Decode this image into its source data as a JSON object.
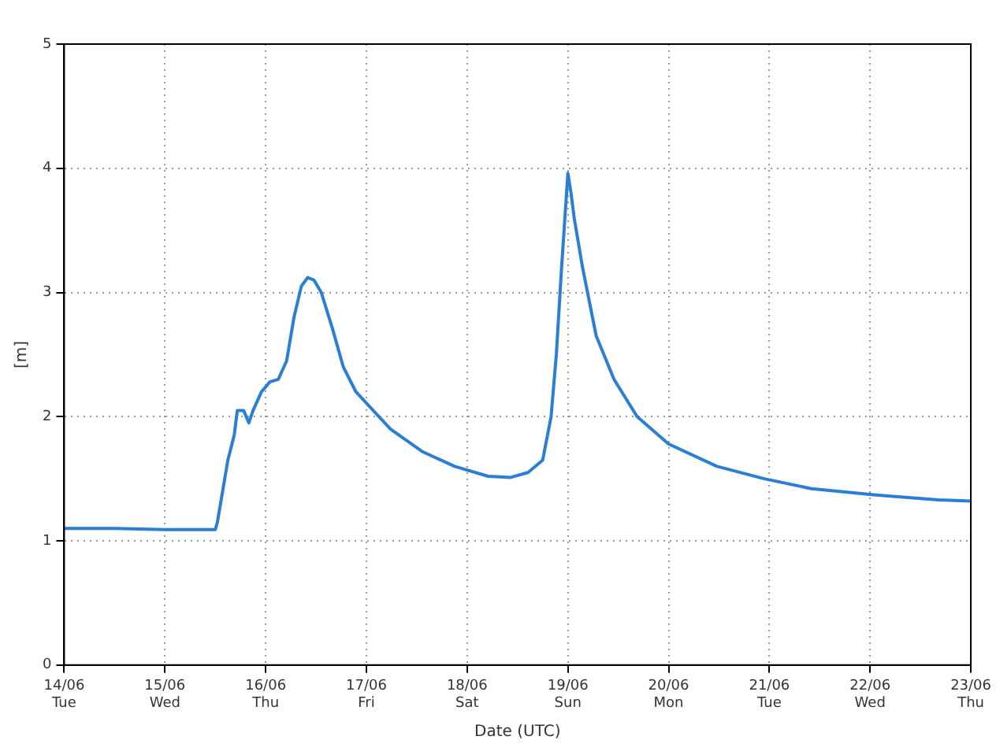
{
  "chart_data": {
    "type": "line",
    "xlabel": "Date (UTC)",
    "ylabel": "[m]",
    "grid": true,
    "legend": false,
    "marker": "none",
    "line_style": "solid",
    "xlim": [
      "--06-14",
      "--06-23"
    ],
    "xticks": [
      {
        "value": "--06-14",
        "label": "14/06 Tue"
      },
      {
        "value": "--06-15",
        "label": "15/06 Wed"
      },
      {
        "value": "--06-16",
        "label": "16/06 Thu"
      },
      {
        "value": "--06-17",
        "label": "17/06 Fri"
      },
      {
        "value": "--06-18",
        "label": "18/06 Sat"
      },
      {
        "value": "--06-19",
        "label": "19/06 Sun"
      },
      {
        "value": "--06-20",
        "label": "20/06 Mon"
      },
      {
        "value": "--06-21",
        "label": "21/06 Tue"
      },
      {
        "value": "--06-22",
        "label": "22/06 Wed"
      },
      {
        "value": "--06-23",
        "label": "23/06 Thu"
      }
    ],
    "ylim": [
      0,
      5
    ],
    "yticks": [
      0,
      1,
      2,
      3,
      4,
      5
    ],
    "series": [
      {
        "color": "#2a7fd4",
        "x": [
          "--06-14T00:00",
          "--06-14T12:00",
          "--06-15T00:00",
          "--06-15T12:00",
          "--06-15T12:30",
          "--06-15T13:30",
          "--06-15T15:00",
          "--06-15T16:30",
          "--06-15T17:15",
          "--06-15T18:45",
          "--06-15T20:00",
          "--06-15T21:00",
          "--06-15T23:00",
          "--06-16T01:00",
          "--06-16T03:00",
          "--06-16T05:00",
          "--06-16T06:45",
          "--06-16T08:30",
          "--06-16T10:00",
          "--06-16T11:30",
          "--06-16T13:15",
          "--06-16T16:00",
          "--06-16T18:30",
          "--06-16T21:30",
          "--06-17T05:45",
          "--06-17T13:15",
          "--06-17T21:00",
          "--06-18T05:00",
          "--06-18T10:15",
          "--06-18T14:30",
          "--06-18T18:00",
          "--06-18T20:00",
          "--06-18T21:15",
          "--06-18T22:30",
          "--06-19T00:00",
          "--06-19T00:45",
          "--06-19T01:30",
          "--06-19T03:30",
          "--06-19T06:45",
          "--06-19T11:00",
          "--06-19T16:30",
          "--06-20T00:00",
          "--06-20T11:30",
          "--06-20T22:45",
          "--06-21T10:00",
          "--06-22T01:15",
          "--06-22T16:15",
          "--06-23T00:00"
        ],
        "values": [
          1.1,
          1.1,
          1.09,
          1.09,
          1.15,
          1.35,
          1.65,
          1.85,
          2.05,
          2.05,
          1.95,
          2.05,
          2.2,
          2.28,
          2.3,
          2.45,
          2.8,
          3.05,
          3.12,
          3.1,
          3.0,
          2.7,
          2.4,
          2.2,
          1.9,
          1.72,
          1.6,
          1.52,
          1.51,
          1.55,
          1.65,
          2.0,
          2.5,
          3.2,
          3.96,
          3.8,
          3.6,
          3.2,
          2.65,
          2.3,
          2.0,
          1.78,
          1.6,
          1.5,
          1.42,
          1.37,
          1.33,
          1.32
        ]
      }
    ]
  }
}
